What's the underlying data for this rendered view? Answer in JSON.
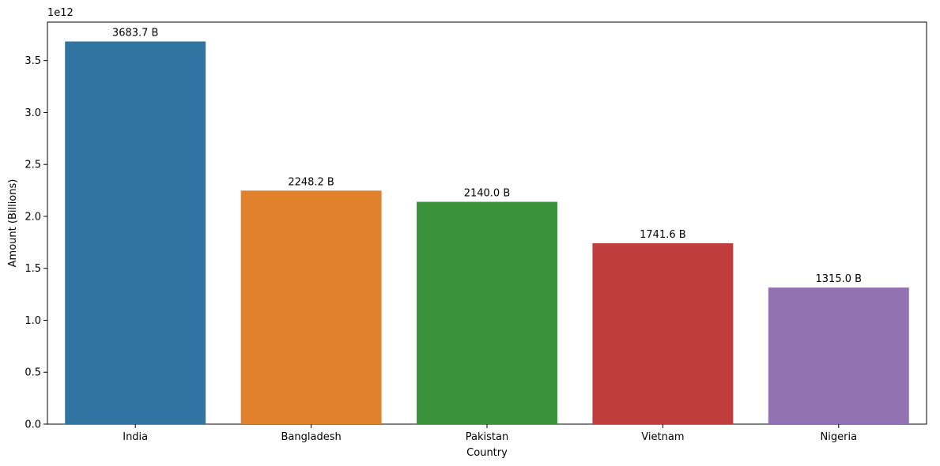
{
  "chart_data": {
    "type": "bar",
    "title": "",
    "xlabel": "Country",
    "ylabel": "Amount (Billions)",
    "y_offset_label": "1e12",
    "categories": [
      "India",
      "Bangladesh",
      "Pakistan",
      "Vietnam",
      "Nigeria"
    ],
    "values": [
      3683700000000,
      2248200000000,
      2140000000000,
      1741600000000,
      1315000000000
    ],
    "data_labels": [
      "3683.7 B",
      "2248.2 B",
      "2140.0 B",
      "1741.6 B",
      "1315.0 B"
    ],
    "colors": [
      "#3274a1",
      "#e1812c",
      "#3a923a",
      "#c03d3e",
      "#9372b2"
    ],
    "ylim": [
      0,
      3870000000000
    ],
    "yticks": [
      0,
      0.5,
      1.0,
      1.5,
      2.0,
      2.5,
      3.0,
      3.5
    ],
    "ytick_labels": [
      "0.0",
      "0.5",
      "1.0",
      "1.5",
      "2.0",
      "2.5",
      "3.0",
      "3.5"
    ],
    "ytick_scale": 1000000000000,
    "grid": false,
    "legend": "none"
  }
}
